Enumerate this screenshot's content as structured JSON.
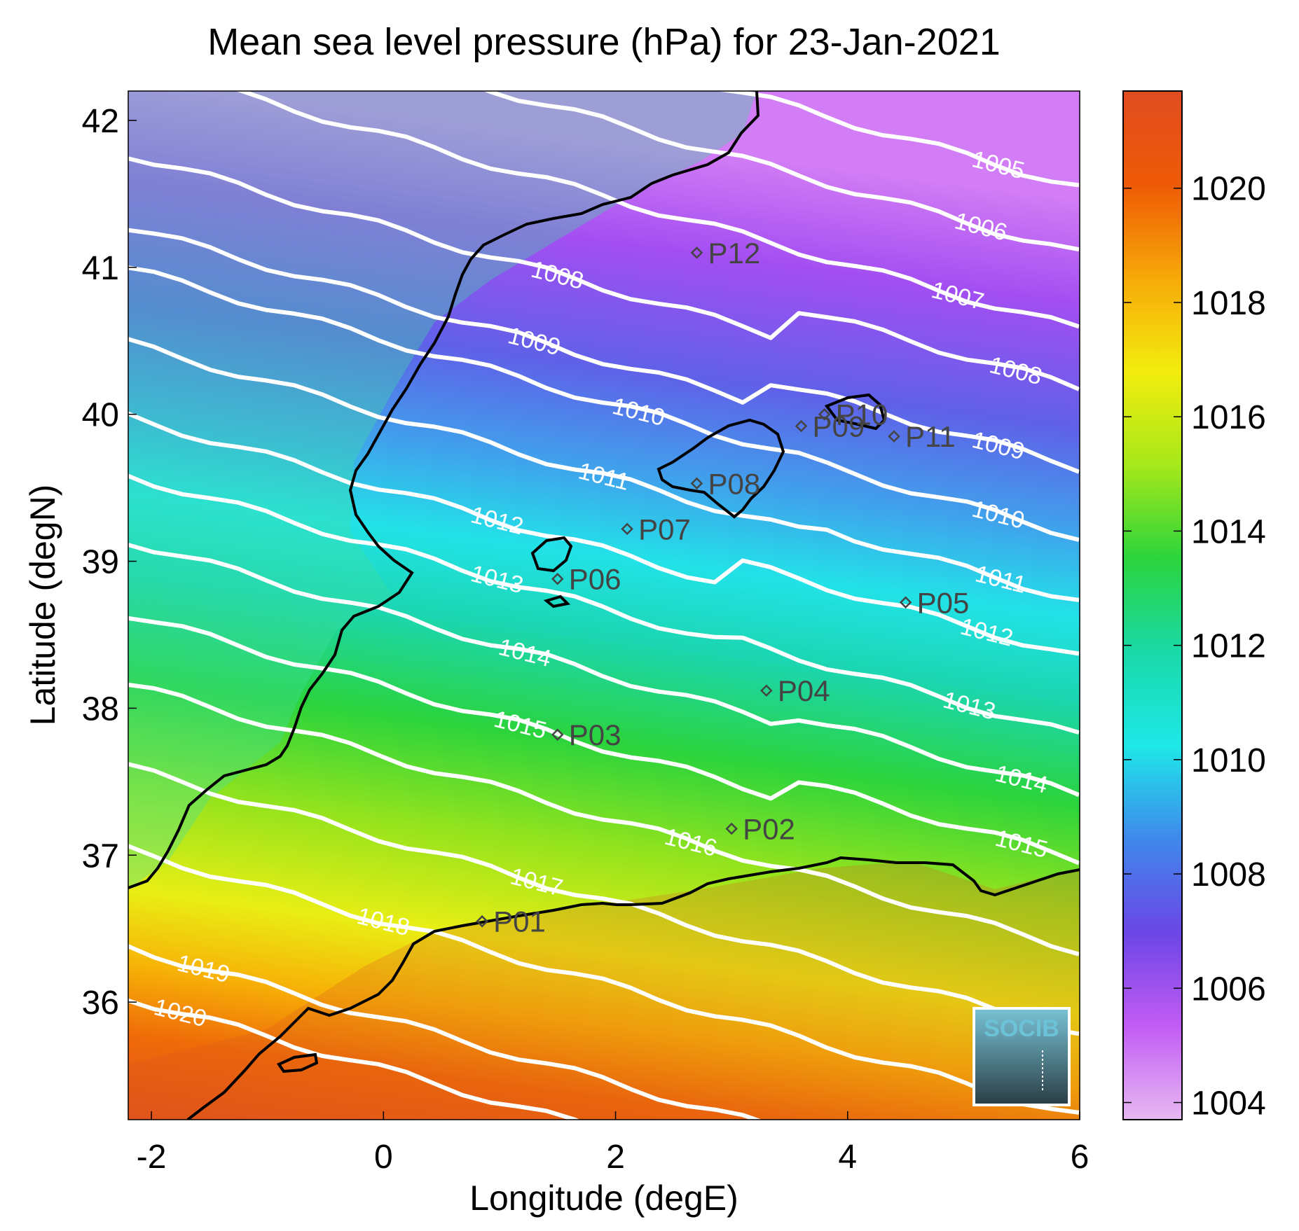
{
  "title": "Mean sea level pressure (hPa) for 23-Jan-2021",
  "chart_data": {
    "type": "heatmap",
    "map_type": "filled pressure field with isobar contours and coastline",
    "xlabel": "Longitude (degE)",
    "ylabel": "Latitude (degN)",
    "xlim": [
      -2.2,
      6.0
    ],
    "ylim": [
      35.2,
      42.2
    ],
    "xticks": [
      -2,
      0,
      2,
      4,
      6
    ],
    "xtick_labels": [
      "-2",
      "0",
      "2",
      "4",
      "6"
    ],
    "yticks": [
      36,
      37,
      38,
      39,
      40,
      41,
      42
    ],
    "ytick_labels": [
      "36",
      "37",
      "38",
      "39",
      "40",
      "41",
      "42"
    ],
    "colorbar": {
      "range": [
        1003.7,
        1021.7
      ],
      "ticks": [
        1004,
        1006,
        1008,
        1010,
        1012,
        1014,
        1016,
        1018,
        1020
      ],
      "tick_labels": [
        "1004",
        "1006",
        "1008",
        "1010",
        "1012",
        "1014",
        "1016",
        "1018",
        "1020"
      ],
      "colors": [
        "#e7b9f2",
        "#c25cf4",
        "#6b46e6",
        "#3f88ec",
        "#1ee8e8",
        "#19d9a8",
        "#2bd43c",
        "#a6e81a",
        "#f3ec0e",
        "#f7a908",
        "#ef5a06",
        "#e04c20"
      ]
    },
    "isobars": [
      {
        "value": 1005,
        "label": "1005",
        "lon": 5.3,
        "lat": 41.7
      },
      {
        "value": 1006,
        "label": "1006",
        "lon": 5.15,
        "lat": 41.28
      },
      {
        "value": 1007,
        "label": "1007",
        "lon": 4.95,
        "lat": 40.81
      },
      {
        "value": 1008,
        "label": "1008",
        "lon": 1.5,
        "lat": 40.95
      },
      {
        "value": 1008,
        "label": "1008",
        "lon": 5.45,
        "lat": 40.3
      },
      {
        "value": 1009,
        "label": "1009",
        "lon": 1.3,
        "lat": 40.5
      },
      {
        "value": 1009,
        "label": "1009",
        "lon": 5.3,
        "lat": 39.79
      },
      {
        "value": 1010,
        "label": "1010",
        "lon": 2.2,
        "lat": 40.02
      },
      {
        "value": 1010,
        "label": "1010",
        "lon": 5.3,
        "lat": 39.32
      },
      {
        "value": 1011,
        "label": "1011",
        "lon": 1.9,
        "lat": 39.58
      },
      {
        "value": 1011,
        "label": "1011",
        "lon": 5.32,
        "lat": 38.88
      },
      {
        "value": 1012,
        "label": "1012",
        "lon": 0.98,
        "lat": 39.28
      },
      {
        "value": 1012,
        "label": "1012",
        "lon": 5.2,
        "lat": 38.52
      },
      {
        "value": 1013,
        "label": "1013",
        "lon": 0.98,
        "lat": 38.88
      },
      {
        "value": 1013,
        "label": "1013",
        "lon": 5.05,
        "lat": 38.02
      },
      {
        "value": 1014,
        "label": "1014",
        "lon": 1.22,
        "lat": 38.38
      },
      {
        "value": 1014,
        "label": "1014",
        "lon": 5.5,
        "lat": 37.52
      },
      {
        "value": 1015,
        "label": "1015",
        "lon": 1.18,
        "lat": 37.89
      },
      {
        "value": 1015,
        "label": "1015",
        "lon": 5.5,
        "lat": 37.08
      },
      {
        "value": 1016,
        "label": "1016",
        "lon": 2.65,
        "lat": 37.09
      },
      {
        "value": 1017,
        "label": "1017",
        "lon": 1.32,
        "lat": 36.82
      },
      {
        "value": 1018,
        "label": "1018",
        "lon": 0.0,
        "lat": 36.55
      },
      {
        "value": 1019,
        "label": "1019",
        "lon": -1.55,
        "lat": 36.23
      },
      {
        "value": 1020,
        "label": "1020",
        "lon": -1.75,
        "lat": 35.93
      }
    ],
    "stations": [
      {
        "label": "P01",
        "lon": 0.85,
        "lat": 36.55
      },
      {
        "label": "P02",
        "lon": 3.0,
        "lat": 37.18
      },
      {
        "label": "P03",
        "lon": 1.5,
        "lat": 37.82
      },
      {
        "label": "P04",
        "lon": 3.3,
        "lat": 38.12
      },
      {
        "label": "P05",
        "lon": 4.5,
        "lat": 38.72
      },
      {
        "label": "P06",
        "lon": 1.5,
        "lat": 38.88
      },
      {
        "label": "P07",
        "lon": 2.1,
        "lat": 39.22
      },
      {
        "label": "P08",
        "lon": 2.7,
        "lat": 39.53
      },
      {
        "label": "P09",
        "lon": 3.6,
        "lat": 39.92
      },
      {
        "label": "P10",
        "lon": 3.8,
        "lat": 40.0
      },
      {
        "label": "P11",
        "lon": 4.4,
        "lat": 39.85
      },
      {
        "label": "P12",
        "lon": 2.7,
        "lat": 41.1
      }
    ]
  },
  "logo": {
    "text": "SOCIB"
  }
}
